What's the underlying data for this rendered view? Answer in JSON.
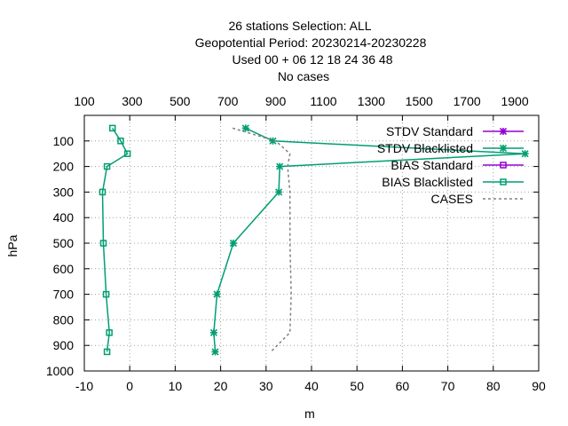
{
  "title_lines": [
    "26 stations Selection: ALL",
    "Geopotential  Period: 20230214-20230228",
    "Used  00  + 06 12 18 24 36 48",
    "No cases"
  ],
  "chart_data": {
    "type": "line",
    "xlabel": "m",
    "ylabel": "hPa",
    "xlim": [
      -10,
      90
    ],
    "ylim": [
      1000,
      0
    ],
    "x2lim": [
      100,
      2000
    ],
    "xticks": [
      "-10",
      "0",
      "10",
      "20",
      "30",
      "40",
      "50",
      "60",
      "70",
      "80",
      "90"
    ],
    "x2ticks": [
      "100",
      "300",
      "500",
      "700",
      "900",
      "1100",
      "1300",
      "1500",
      "1700",
      "1900"
    ],
    "yticks": [
      "100",
      "200",
      "300",
      "400",
      "500",
      "600",
      "700",
      "800",
      "900",
      "1000"
    ],
    "grid": true,
    "legend_position": "top-right",
    "series": [
      {
        "name": "STDV Standard",
        "color": "#9400d3",
        "marker": "cross",
        "axis": "x1",
        "points": []
      },
      {
        "name": "STDV Blacklisted",
        "color": "#009e73",
        "marker": "cross",
        "axis": "x1",
        "points": [
          {
            "x": 25.5,
            "y": 50
          },
          {
            "x": 31.5,
            "y": 100
          },
          {
            "x": 87.0,
            "y": 150
          },
          {
            "x": 33.0,
            "y": 200
          },
          {
            "x": 32.8,
            "y": 300
          },
          {
            "x": 22.8,
            "y": 500
          },
          {
            "x": 19.2,
            "y": 700
          },
          {
            "x": 18.5,
            "y": 850
          },
          {
            "x": 18.8,
            "y": 925
          }
        ]
      },
      {
        "name": "BIAS Standard",
        "color": "#9400d3",
        "marker": "square",
        "axis": "x1",
        "points": []
      },
      {
        "name": "BIAS Blacklisted",
        "color": "#009e73",
        "marker": "square",
        "axis": "x1",
        "points": [
          {
            "x": -3.8,
            "y": 50
          },
          {
            "x": -2.0,
            "y": 100
          },
          {
            "x": -0.5,
            "y": 150
          },
          {
            "x": -5.0,
            "y": 200
          },
          {
            "x": -6.0,
            "y": 300
          },
          {
            "x": -5.8,
            "y": 500
          },
          {
            "x": -5.2,
            "y": 700
          },
          {
            "x": -4.5,
            "y": 850
          },
          {
            "x": -5.0,
            "y": 925
          }
        ]
      },
      {
        "name": "CASES",
        "color": "#808080",
        "marker": "none",
        "dashed": true,
        "axis": "x2",
        "points": [
          {
            "x": 720,
            "y": 50
          },
          {
            "x": 900,
            "y": 100
          },
          {
            "x": 960,
            "y": 150
          },
          {
            "x": 950,
            "y": 200
          },
          {
            "x": 960,
            "y": 300
          },
          {
            "x": 960,
            "y": 500
          },
          {
            "x": 965,
            "y": 700
          },
          {
            "x": 960,
            "y": 850
          },
          {
            "x": 880,
            "y": 925
          }
        ]
      }
    ]
  }
}
